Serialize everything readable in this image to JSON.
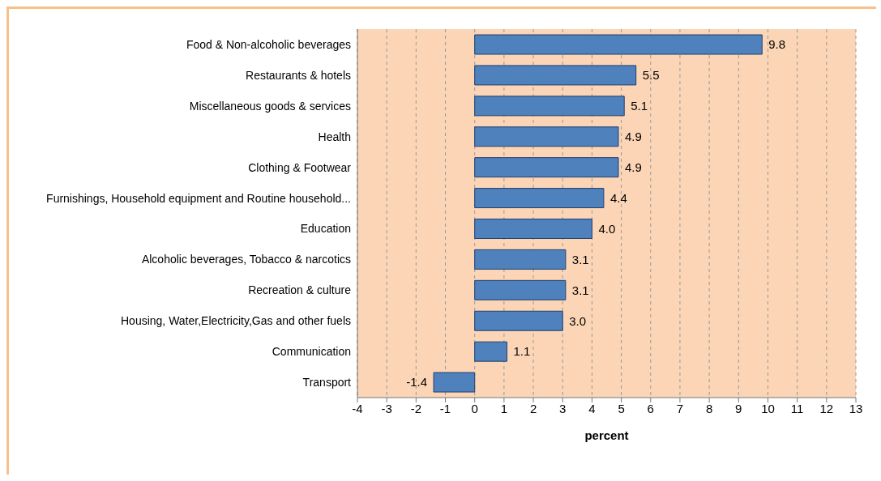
{
  "chart_data": {
    "type": "bar",
    "orientation": "horizontal",
    "xlabel": "percent",
    "categories": [
      "Food & Non-alcoholic beverages",
      "Restaurants & hotels",
      "Miscellaneous goods & services",
      "Health",
      "Clothing & Footwear",
      "Furnishings, Household equipment and Routine household...",
      "Education",
      "Alcoholic beverages, Tobacco & narcotics",
      "Recreation & culture",
      "Housing, Water,Electricity,Gas and other fuels",
      "Communication",
      "Transport"
    ],
    "values": [
      9.8,
      5.5,
      5.1,
      4.9,
      4.9,
      4.4,
      4.0,
      3.1,
      3.1,
      3.0,
      1.1,
      -1.4
    ],
    "value_labels": [
      "9.8",
      "5.5",
      "5.1",
      "4.9",
      "4.9",
      "4.4",
      "4.0",
      "3.1",
      "3.1",
      "3.0",
      "1.1",
      "-1.4"
    ],
    "color": "#4f81bd",
    "xlim": [
      -4,
      13
    ],
    "xticks": [
      -4,
      -3,
      -2,
      -1,
      0,
      1,
      2,
      3,
      4,
      5,
      6,
      7,
      8,
      9,
      10,
      11,
      12,
      13
    ],
    "grid": "x"
  }
}
